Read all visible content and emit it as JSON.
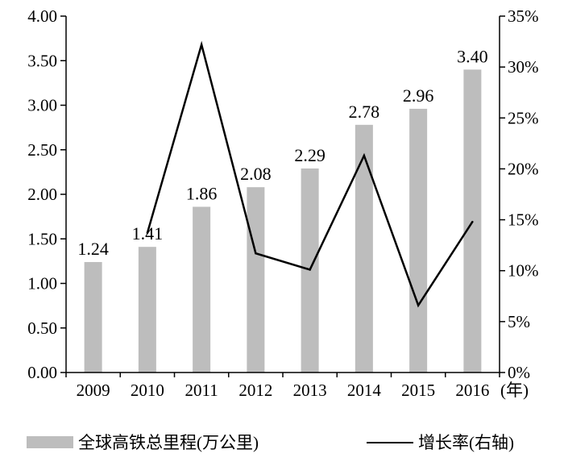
{
  "chart_data": {
    "type": "bar+line",
    "categories": [
      "2009",
      "2010",
      "2011",
      "2012",
      "2013",
      "2014",
      "2015",
      "2016"
    ],
    "x_unit": "(年)",
    "series": [
      {
        "name": "全球高铁总里程(万公里)",
        "type": "bar",
        "axis": "left",
        "values": [
          1.24,
          1.41,
          1.86,
          2.08,
          2.29,
          2.78,
          2.96,
          3.4
        ],
        "labels": [
          "1.24",
          "1.41",
          "1.86",
          "2.08",
          "2.29",
          "2.78",
          "2.96",
          "3.40"
        ],
        "color": "#bdbdbd"
      },
      {
        "name": "增长率(右轴)",
        "type": "line",
        "axis": "right",
        "values": [
          null,
          13.7,
          32.2,
          11.7,
          10.1,
          21.3,
          6.6,
          14.8
        ],
        "color": "#000000"
      }
    ],
    "y_left": {
      "lim": [
        0,
        4
      ],
      "ticks": [
        0,
        0.5,
        1,
        1.5,
        2,
        2.5,
        3,
        3.5,
        4
      ],
      "tick_labels": [
        "0.00",
        "0.50",
        "1.00",
        "1.50",
        "2.00",
        "2.50",
        "3.00",
        "3.50",
        "4.00"
      ]
    },
    "y_right": {
      "lim": [
        0,
        35
      ],
      "ticks": [
        0,
        5,
        10,
        15,
        20,
        25,
        30,
        35
      ],
      "tick_labels": [
        "0%",
        "5%",
        "10%",
        "15%",
        "20%",
        "25%",
        "30%",
        "35%"
      ]
    },
    "grid": false,
    "legend_position": "bottom"
  }
}
